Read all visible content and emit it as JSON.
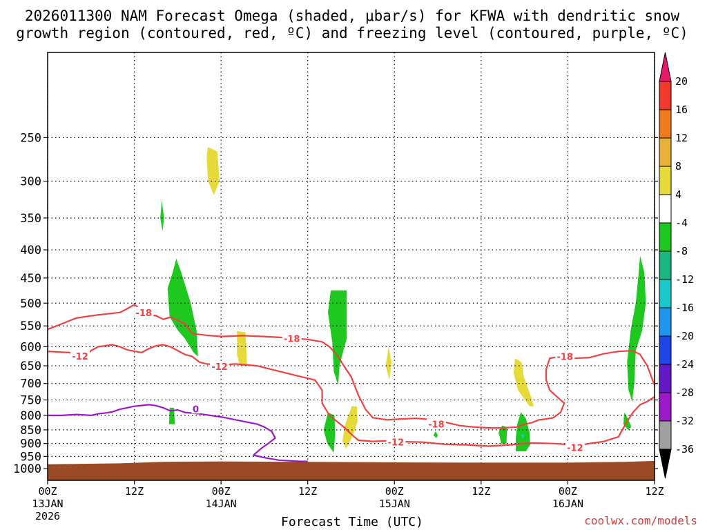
{
  "chart_data": {
    "type": "time-height cross section",
    "title_lines": [
      "2026011300 NAM Forecast Omega (shaded, μbar/s) for KFWA with dendritic snow",
      "growth region (contoured, red, ºC) and freezing level (contoured, purple, ºC)"
    ],
    "xlabel": "Forecast Time (UTC)",
    "credit": "coolwx.com/models",
    "x_hours_range": [
      0,
      84
    ],
    "y_pressure_range_hpa": [
      1050,
      175
    ],
    "x_ticks": [
      {
        "hour": 0,
        "lines": [
          "00Z",
          "13JAN",
          "2026"
        ]
      },
      {
        "hour": 12,
        "lines": [
          "12Z"
        ]
      },
      {
        "hour": 24,
        "lines": [
          "00Z",
          "14JAN"
        ]
      },
      {
        "hour": 36,
        "lines": [
          "12Z"
        ]
      },
      {
        "hour": 48,
        "lines": [
          "00Z",
          "15JAN"
        ]
      },
      {
        "hour": 60,
        "lines": [
          "12Z"
        ]
      },
      {
        "hour": 72,
        "lines": [
          "00Z",
          "16JAN"
        ]
      },
      {
        "hour": 84,
        "lines": [
          "12Z"
        ]
      }
    ],
    "y_ticks": [
      250,
      300,
      350,
      400,
      450,
      500,
      550,
      600,
      650,
      700,
      750,
      800,
      850,
      900,
      950,
      1000
    ],
    "colorbar": {
      "labels": [
        "20",
        "16",
        "12",
        "8",
        "4",
        "-4",
        "-8",
        "-12",
        "-16",
        "-20",
        "-24",
        "-28",
        "-32",
        "-36"
      ],
      "colors": [
        "#e8186b",
        "#f23a2c",
        "#f07a1e",
        "#e8b23a",
        "#e6d93a",
        "#ffffff",
        "#1ec81e",
        "#19b583",
        "#19c8c8",
        "#1e96f0",
        "#1e46e6",
        "#6419c8",
        "#9b19c8",
        "#a0a0a0",
        "#000000"
      ]
    },
    "series": [
      {
        "name": "-18C isotherm (dendritic growth top)",
        "color": "#f04040",
        "label": "-18",
        "points": [
          [
            0,
            558
          ],
          [
            2,
            545
          ],
          [
            4,
            532
          ],
          [
            7,
            525
          ],
          [
            10,
            520
          ],
          [
            11,
            512
          ],
          [
            12,
            503
          ],
          [
            13,
            515
          ],
          [
            14,
            525
          ],
          [
            15,
            527
          ],
          [
            16,
            535
          ],
          [
            17,
            530
          ],
          [
            19,
            545
          ],
          [
            20,
            568
          ],
          [
            22,
            572
          ],
          [
            24,
            575
          ],
          [
            27,
            573
          ],
          [
            30,
            575
          ],
          [
            33,
            578
          ],
          [
            36,
            582
          ],
          [
            38,
            588
          ],
          [
            39,
            600
          ],
          [
            40,
            620
          ],
          [
            41,
            650
          ],
          [
            42,
            680
          ],
          [
            43,
            735
          ],
          [
            44,
            780
          ],
          [
            45,
            808
          ],
          [
            47,
            815
          ],
          [
            49,
            812
          ],
          [
            51,
            810
          ],
          [
            53,
            814
          ],
          [
            55,
            823
          ],
          [
            57,
            835
          ],
          [
            59,
            840
          ],
          [
            61,
            843
          ],
          [
            63,
            843
          ],
          [
            65,
            840
          ],
          [
            66,
            830
          ],
          [
            67,
            825
          ],
          [
            68,
            815
          ],
          [
            69,
            812
          ],
          [
            70,
            808
          ],
          [
            71,
            790
          ],
          [
            71.5,
            760
          ],
          [
            70.5,
            740
          ],
          [
            69.5,
            720
          ],
          [
            69,
            690
          ],
          [
            69,
            660
          ],
          [
            69.5,
            630
          ],
          [
            71,
            625
          ],
          [
            73,
            630
          ],
          [
            75,
            628
          ],
          [
            77,
            618
          ],
          [
            79,
            612
          ],
          [
            81,
            610
          ],
          [
            82,
            620
          ],
          [
            83,
            650
          ],
          [
            84,
            705
          ]
        ]
      },
      {
        "name": "-12C isotherm (dendritic growth bottom)",
        "color": "#f04040",
        "label": "-12",
        "points": [
          [
            0,
            612
          ],
          [
            3,
            615
          ],
          [
            4,
            620
          ],
          [
            5,
            630
          ],
          [
            6,
            610
          ],
          [
            7,
            600
          ],
          [
            9,
            595
          ],
          [
            10,
            600
          ],
          [
            11,
            608
          ],
          [
            13,
            615
          ],
          [
            14,
            605
          ],
          [
            15,
            598
          ],
          [
            16,
            595
          ],
          [
            17,
            600
          ],
          [
            18,
            610
          ],
          [
            19,
            620
          ],
          [
            20,
            625
          ],
          [
            21,
            640
          ],
          [
            22,
            645
          ],
          [
            24,
            648
          ],
          [
            26,
            645
          ],
          [
            29,
            650
          ],
          [
            32,
            665
          ],
          [
            35,
            680
          ],
          [
            37,
            690
          ],
          [
            38,
            720
          ],
          [
            38,
            760
          ],
          [
            39,
            800
          ],
          [
            40,
            820
          ],
          [
            41,
            840
          ],
          [
            42,
            865
          ],
          [
            43,
            888
          ],
          [
            45,
            892
          ],
          [
            47,
            890
          ],
          [
            49,
            893
          ],
          [
            52,
            895
          ],
          [
            55,
            903
          ],
          [
            58,
            905
          ],
          [
            61,
            910
          ],
          [
            64,
            905
          ],
          [
            67,
            898
          ],
          [
            70,
            900
          ],
          [
            72,
            904
          ],
          [
            74,
            905
          ],
          [
            75,
            900
          ],
          [
            77,
            892
          ],
          [
            79,
            875
          ],
          [
            80,
            830
          ],
          [
            81,
            790
          ],
          [
            82,
            765
          ],
          [
            83,
            755
          ],
          [
            84,
            740
          ]
        ]
      },
      {
        "name": "0C isotherm (freezing level)",
        "color": "#9b19c8",
        "label": "0",
        "points": [
          [
            0,
            800
          ],
          [
            2,
            800
          ],
          [
            4,
            797
          ],
          [
            6,
            800
          ],
          [
            7,
            795
          ],
          [
            8,
            792
          ],
          [
            9,
            788
          ],
          [
            10,
            780
          ],
          [
            11,
            775
          ],
          [
            12,
            770
          ],
          [
            14,
            765
          ],
          [
            15,
            768
          ],
          [
            16,
            775
          ],
          [
            17,
            785
          ],
          [
            18,
            782
          ],
          [
            19,
            790
          ],
          [
            21,
            795
          ],
          [
            24,
            805
          ],
          [
            27,
            820
          ],
          [
            29,
            830
          ],
          [
            30,
            840
          ],
          [
            31,
            855
          ],
          [
            31.5,
            880
          ],
          [
            30.5,
            900
          ],
          [
            29.5,
            920
          ],
          [
            28.5,
            945
          ],
          [
            30,
            955
          ],
          [
            32,
            965
          ],
          [
            35,
            970
          ],
          [
            36,
            970
          ]
        ]
      }
    ],
    "omega_shaded_regions": [
      {
        "value": 4,
        "color": "#e6d93a",
        "points": [
          [
            22.2,
            260
          ],
          [
            23.5,
            265
          ],
          [
            23.8,
            300
          ],
          [
            23.0,
            318
          ],
          [
            22.2,
            300
          ],
          [
            22.0,
            270
          ]
        ]
      },
      {
        "value": -4,
        "color": "#1ec81e",
        "points": [
          [
            15.8,
            325
          ],
          [
            16.1,
            350
          ],
          [
            15.9,
            370
          ],
          [
            15.6,
            350
          ]
        ]
      },
      {
        "value": -4,
        "color": "#1ec81e",
        "points": [
          [
            17.8,
            415
          ],
          [
            18.5,
            440
          ],
          [
            19.8,
            500
          ],
          [
            20.6,
            560
          ],
          [
            20.8,
            625
          ],
          [
            20.2,
            615
          ],
          [
            19.0,
            580
          ],
          [
            18.0,
            560
          ],
          [
            16.9,
            530
          ],
          [
            16.6,
            470
          ],
          [
            17.3,
            440
          ]
        ]
      },
      {
        "value": 4,
        "color": "#e6d93a",
        "points": [
          [
            26.2,
            562
          ],
          [
            27.4,
            565
          ],
          [
            27.6,
            650
          ],
          [
            26.6,
            650
          ],
          [
            26.2,
            620
          ]
        ]
      },
      {
        "value": -4,
        "color": "#1ec81e",
        "points": [
          [
            39.2,
            474
          ],
          [
            41.4,
            474
          ],
          [
            41.4,
            580
          ],
          [
            40.8,
            620
          ],
          [
            40.4,
            650
          ],
          [
            40.2,
            705
          ],
          [
            39.6,
            665
          ],
          [
            39.4,
            590
          ],
          [
            38.8,
            520
          ]
        ]
      },
      {
        "value": -4,
        "color": "#1ec81e",
        "points": [
          [
            16.9,
            775
          ],
          [
            17.5,
            775
          ],
          [
            17.6,
            830
          ],
          [
            16.8,
            830
          ]
        ]
      },
      {
        "value": -4,
        "color": "#1ec81e",
        "points": [
          [
            38.8,
            790
          ],
          [
            39.7,
            800
          ],
          [
            39.8,
            860
          ],
          [
            39.6,
            935
          ],
          [
            38.7,
            900
          ],
          [
            38.2,
            850
          ]
        ]
      },
      {
        "value": 4,
        "color": "#e6d93a",
        "points": [
          [
            42.1,
            770
          ],
          [
            42.8,
            770
          ],
          [
            42.9,
            820
          ],
          [
            42.4,
            860
          ],
          [
            41.9,
            890
          ],
          [
            41.3,
            920
          ],
          [
            40.8,
            890
          ],
          [
            41.2,
            830
          ]
        ]
      },
      {
        "value": 4,
        "color": "#e6d93a",
        "points": [
          [
            47.2,
            600
          ],
          [
            47.6,
            640
          ],
          [
            47.3,
            690
          ],
          [
            46.8,
            650
          ]
        ]
      },
      {
        "value": -4,
        "color": "#1ec81e",
        "points": [
          [
            53.7,
            855
          ],
          [
            54.0,
            870
          ],
          [
            53.8,
            880
          ],
          [
            53.4,
            870
          ]
        ]
      },
      {
        "value": -4,
        "color": "#1ec81e",
        "points": [
          [
            62.9,
            835
          ],
          [
            63.6,
            840
          ],
          [
            63.5,
            900
          ],
          [
            62.8,
            900
          ],
          [
            62.4,
            860
          ]
        ]
      },
      {
        "value": -4,
        "color": "#1ec81e",
        "points": [
          [
            65.5,
            790
          ],
          [
            66.2,
            810
          ],
          [
            66.7,
            860
          ],
          [
            66.8,
            905
          ],
          [
            66.2,
            930
          ],
          [
            64.8,
            930
          ],
          [
            64.8,
            880
          ],
          [
            65.0,
            830
          ]
        ]
      },
      {
        "value": -8,
        "color": "#19c8c8",
        "points": [
          [
            65.7,
            865
          ],
          [
            66.0,
            870
          ],
          [
            65.8,
            880
          ],
          [
            65.5,
            870
          ]
        ]
      },
      {
        "value": 4,
        "color": "#e6d93a",
        "points": [
          [
            64.7,
            630
          ],
          [
            65.6,
            640
          ],
          [
            65.9,
            680
          ],
          [
            66.9,
            740
          ],
          [
            67.3,
            770
          ],
          [
            66.7,
            770
          ],
          [
            65.1,
            720
          ],
          [
            64.5,
            670
          ]
        ]
      },
      {
        "value": -4,
        "color": "#1ec81e",
        "points": [
          [
            82.0,
            410
          ],
          [
            82.6,
            440
          ],
          [
            82.8,
            500
          ],
          [
            82.3,
            560
          ],
          [
            81.4,
            610
          ],
          [
            81.2,
            700
          ],
          [
            80.9,
            755
          ],
          [
            80.4,
            720
          ],
          [
            80.2,
            640
          ],
          [
            80.7,
            560
          ],
          [
            81.4,
            500
          ],
          [
            81.8,
            440
          ]
        ]
      },
      {
        "value": -4,
        "color": "#1ec81e",
        "points": [
          [
            79.8,
            790
          ],
          [
            80.3,
            810
          ],
          [
            80.8,
            840
          ],
          [
            80.3,
            850
          ],
          [
            79.7,
            830
          ]
        ]
      }
    ],
    "contour_labels": [
      {
        "text": "-18",
        "x": 13.3,
        "y": 520,
        "color": "#f04040"
      },
      {
        "text": "-12",
        "x": 4.5,
        "y": 624,
        "color": "#f04040"
      },
      {
        "text": "-12",
        "x": 23.8,
        "y": 652,
        "color": "#f04040"
      },
      {
        "text": "-18",
        "x": 33.8,
        "y": 580,
        "color": "#f04040"
      },
      {
        "text": "0",
        "x": 20.5,
        "y": 778,
        "color": "#9b19c8"
      },
      {
        "text": "-18",
        "x": 53.8,
        "y": 830,
        "color": "#f04040"
      },
      {
        "text": "-12",
        "x": 48.2,
        "y": 895,
        "color": "#f04040"
      },
      {
        "text": "-18",
        "x": 71.6,
        "y": 625,
        "color": "#f04040"
      },
      {
        "text": "-12",
        "x": 73.0,
        "y": 915,
        "color": "#f04040"
      }
    ]
  }
}
